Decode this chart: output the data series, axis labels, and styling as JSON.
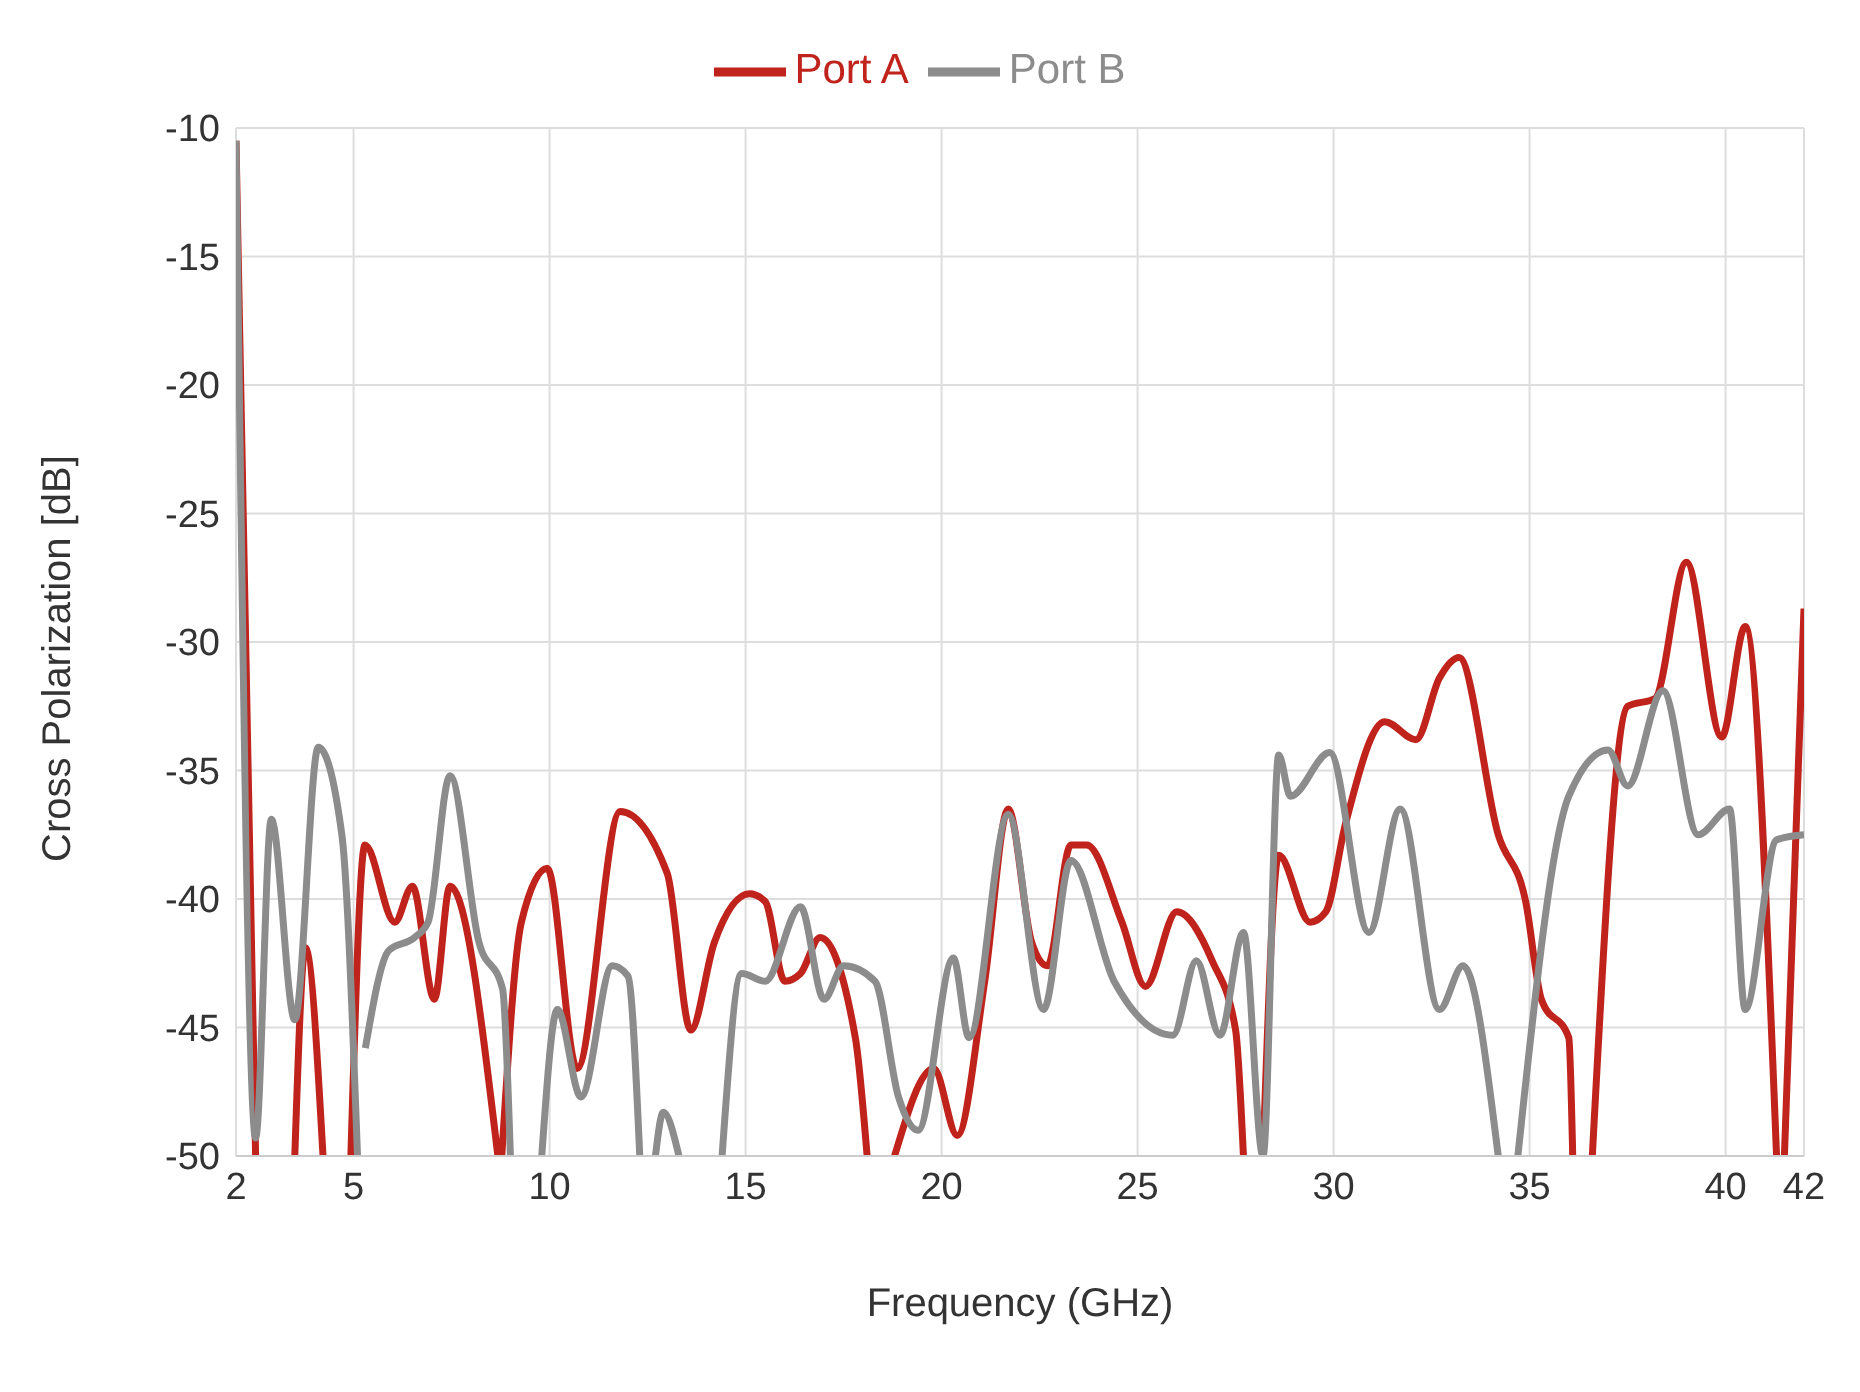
{
  "chart_data": {
    "type": "line",
    "xlabel": "Frequency (GHz)",
    "ylabel": "Cross Polarization [dB]",
    "xlim": [
      2,
      42
    ],
    "ylim": [
      -50,
      -10
    ],
    "xticks": [
      2,
      5,
      10,
      15,
      20,
      25,
      30,
      35,
      40,
      42
    ],
    "yticks": [
      -50,
      -45,
      -40,
      -35,
      -30,
      -25,
      -20,
      -15,
      -10
    ],
    "grid": true,
    "legend": "top",
    "marker": "none",
    "line_style": "solid",
    "series": [
      {
        "name": "Port  A",
        "color": "#c0221c",
        "x": [
          2,
          2.5,
          2.6,
          3.5,
          3.77,
          4.22,
          4.3,
          4.93,
          5.29,
          6.05,
          6.5,
          7.06,
          7.46,
          8.68,
          8.7,
          8.78,
          9.28,
          9.94,
          10.7,
          11.8,
          13,
          13.6,
          14.2,
          15.1,
          15.5,
          16,
          16.4,
          16.9,
          17.8,
          18.1,
          18.3,
          18.8,
          19.8,
          20.4,
          21.1,
          21.7,
          22.3,
          22.7,
          23.3,
          23.7,
          24.6,
          25.2,
          26,
          26.9,
          27.5,
          27.7,
          27.9,
          28.2,
          28.6,
          29.4,
          29.8,
          30.3,
          31.3,
          32.1,
          32.7,
          33.2,
          34.2,
          34.9,
          35.3,
          36,
          36.1,
          36.3,
          36.6,
          37.5,
          38.2,
          39,
          39.9,
          40.5,
          41.3,
          41.4,
          41.5,
          42
        ],
        "values": [
          -10.5,
          -50,
          null,
          -50,
          -41.9,
          -50,
          null,
          -50,
          -37.9,
          -40.9,
          -39.5,
          -43.9,
          -39.5,
          -50,
          null,
          -50,
          -40.9,
          -38.8,
          -46.6,
          -36.6,
          -39,
          -45.1,
          -41.7,
          -39.8,
          -40.1,
          -43.2,
          -42.9,
          -41.5,
          -45.4,
          -50,
          null,
          -50,
          -46.6,
          -49.2,
          -43.2,
          -36.5,
          -41.7,
          -42.6,
          -37.9,
          -37.9,
          -40.9,
          -43.4,
          -40.5,
          -42.4,
          -45.1,
          -50,
          null,
          -50,
          -38.3,
          -40.9,
          -40.5,
          -37.1,
          -33.1,
          -33.8,
          -31.4,
          -30.6,
          -37.5,
          -40.1,
          -43.9,
          -45.4,
          -50,
          null,
          -50,
          -32.5,
          -32.2,
          -26.9,
          -33.7,
          -29.4,
          -50,
          null,
          -50,
          -28.7
        ]
      },
      {
        "name": "Port  B",
        "color": "#8c8c8c",
        "x": [
          2,
          2.5,
          2.9,
          3.5,
          4.1,
          4.7,
          5.1,
          5.2,
          5.3,
          5.9,
          6.55,
          6.9,
          7.46,
          8.2,
          8.8,
          9,
          9.4,
          9.8,
          10.2,
          10.8,
          11.6,
          12,
          12.3,
          12.5,
          12.7,
          12.9,
          13.3,
          13.8,
          14.4,
          14.9,
          15.5,
          16.4,
          17,
          17.5,
          18.3,
          18.9,
          19.4,
          20.3,
          20.7,
          21.7,
          22.6,
          23.3,
          24.4,
          25.9,
          26.5,
          27.1,
          27.7,
          28.2,
          28.6,
          28.9,
          29.9,
          30.9,
          31.7,
          32.7,
          33.3,
          34.2,
          34.4,
          34.7,
          36,
          37,
          37.5,
          38.4,
          39.3,
          40.1,
          40.5,
          41.3,
          42
        ],
        "values": [
          -10.5,
          -49.3,
          -36.9,
          -44.7,
          -34.1,
          -37.5,
          -50,
          null,
          -45.8,
          -42,
          -41.5,
          -40.9,
          -35.2,
          -41.7,
          -43.5,
          -50,
          null,
          -50,
          -44.3,
          -47.7,
          -42.6,
          -43,
          -50,
          null,
          -50,
          -48.3,
          -50,
          null,
          -50,
          -42.9,
          -43.2,
          -40.3,
          -43.9,
          -42.6,
          -43.2,
          -47.7,
          -49,
          -42.3,
          -45.4,
          -36.7,
          -44.3,
          -38.5,
          -43.2,
          -45.3,
          -42.4,
          -45.3,
          -41.3,
          -50,
          -34.4,
          -36,
          -34.3,
          -41.3,
          -36.5,
          -44.3,
          -42.6,
          -50,
          null,
          -50,
          -36,
          -34.2,
          -35.6,
          -31.9,
          -37.5,
          -36.5,
          -44.3,
          -37.7,
          -37.5
        ]
      }
    ]
  }
}
